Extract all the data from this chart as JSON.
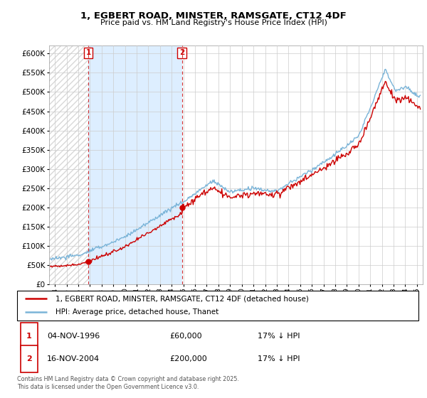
{
  "title": "1, EGBERT ROAD, MINSTER, RAMSGATE, CT12 4DF",
  "subtitle": "Price paid vs. HM Land Registry's House Price Index (HPI)",
  "legend_line1": "1, EGBERT ROAD, MINSTER, RAMSGATE, CT12 4DF (detached house)",
  "legend_line2": "HPI: Average price, detached house, Thanet",
  "annotation1_date": "04-NOV-1996",
  "annotation1_price": "£60,000",
  "annotation1_hpi": "17% ↓ HPI",
  "annotation2_date": "16-NOV-2004",
  "annotation2_price": "£200,000",
  "annotation2_hpi": "17% ↓ HPI",
  "footer": "Contains HM Land Registry data © Crown copyright and database right 2025.\nThis data is licensed under the Open Government Licence v3.0.",
  "sale1_year": 1996.85,
  "sale1_price": 60000,
  "sale2_year": 2004.88,
  "sale2_price": 200000,
  "hpi_color": "#7ab4d8",
  "price_color": "#cc0000",
  "background_color": "#ffffff",
  "hatch_color": "#d8d8d8",
  "highlight_color": "#ddeeff",
  "grid_color": "#cccccc",
  "ylim": [
    0,
    620000
  ],
  "xlim_start": 1993.5,
  "xlim_end": 2025.5,
  "ytick_step": 50000
}
